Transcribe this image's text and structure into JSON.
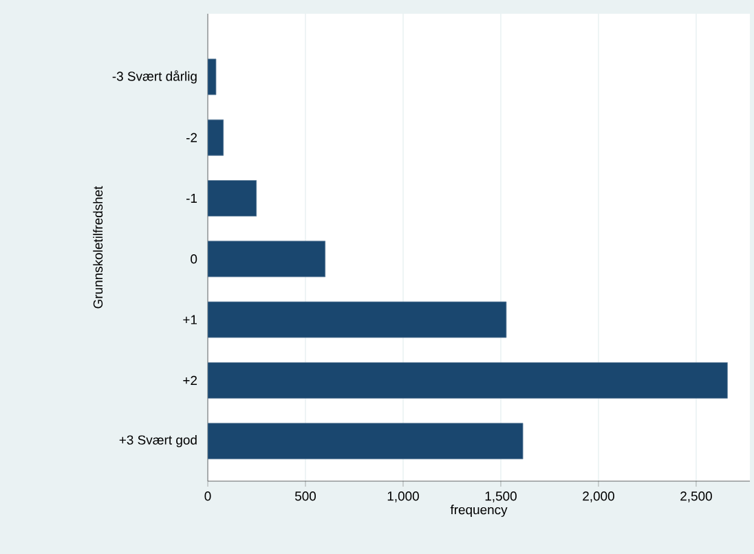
{
  "chart_data": {
    "type": "bar",
    "orientation": "horizontal",
    "categories": [
      "-3 Svært dårlig",
      "-2",
      "-1",
      "0",
      "+1",
      "+2",
      "+3 Svært god"
    ],
    "values": [
      42,
      80,
      249,
      601,
      1528,
      2660,
      1613
    ],
    "color": "#1a476f",
    "xlabel": "frequency",
    "ylabel": "Grunnskoletilfredshet",
    "xlim": [
      0,
      2775
    ],
    "xticks": [
      0,
      500,
      {
        "value": 1000,
        "label": "1,000"
      },
      {
        "value": 1500,
        "label": "1,500"
      },
      {
        "value": 2000,
        "label": "2,000"
      },
      {
        "value": 2500,
        "label": "2,500"
      }
    ],
    "grid": "x"
  }
}
